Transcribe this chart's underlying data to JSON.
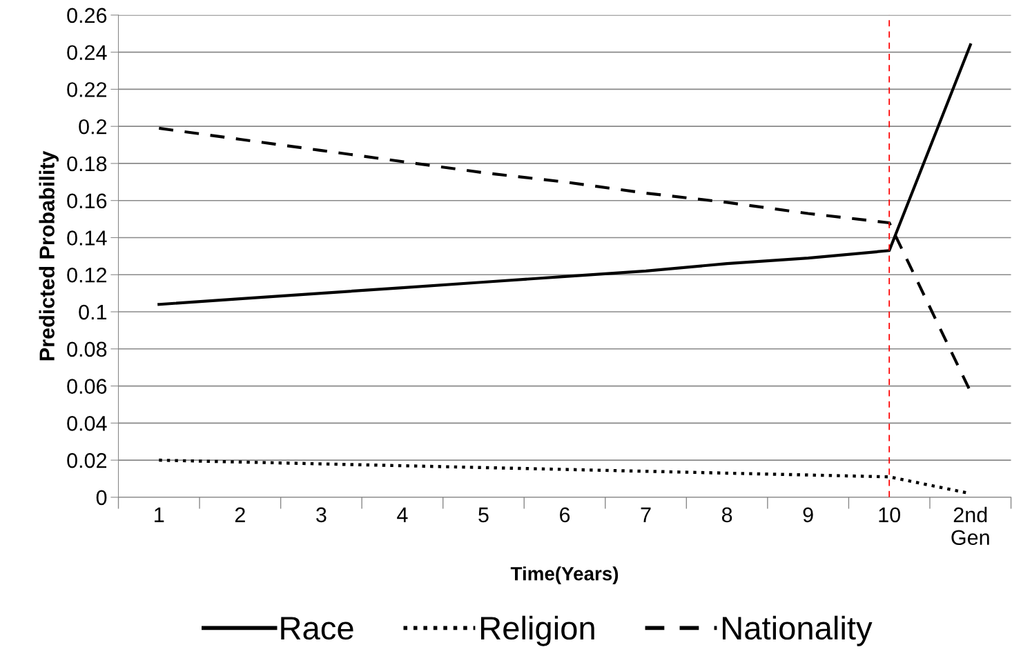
{
  "chart_data": {
    "type": "line",
    "xlabel": "Time(Years)",
    "ylabel": "Predicted Probability",
    "categories": [
      "1",
      "2",
      "3",
      "4",
      "5",
      "6",
      "7",
      "8",
      "9",
      "10",
      "2nd\nGen"
    ],
    "series": [
      {
        "name": "Race",
        "color": "#000000",
        "line_style": "solid",
        "values": [
          0.104,
          0.107,
          0.11,
          0.113,
          0.116,
          0.119,
          0.122,
          0.126,
          0.129,
          0.133,
          0.244
        ]
      },
      {
        "name": "Religion",
        "color": "#000000",
        "line_style": "dotted",
        "values": [
          0.02,
          0.019,
          0.018,
          0.017,
          0.016,
          0.015,
          0.014,
          0.013,
          0.012,
          0.011,
          0.002
        ]
      },
      {
        "name": "Nationality",
        "color": "#000000",
        "line_style": "dashed",
        "values": [
          0.199,
          0.193,
          0.187,
          0.181,
          0.175,
          0.17,
          0.164,
          0.159,
          0.153,
          0.148,
          0.057
        ]
      }
    ],
    "ylim": [
      0,
      0.26
    ],
    "yticks": [
      0,
      0.02,
      0.04,
      0.06,
      0.08,
      0.1,
      0.12,
      0.14,
      0.16,
      0.18,
      0.2,
      0.22,
      0.24,
      0.26
    ],
    "ref_lines": [
      {
        "axis": "x",
        "value": "10",
        "color": "#ff0000",
        "line_style": "dashed"
      }
    ],
    "grid": "y",
    "legend": "bottom",
    "marker": "none"
  }
}
